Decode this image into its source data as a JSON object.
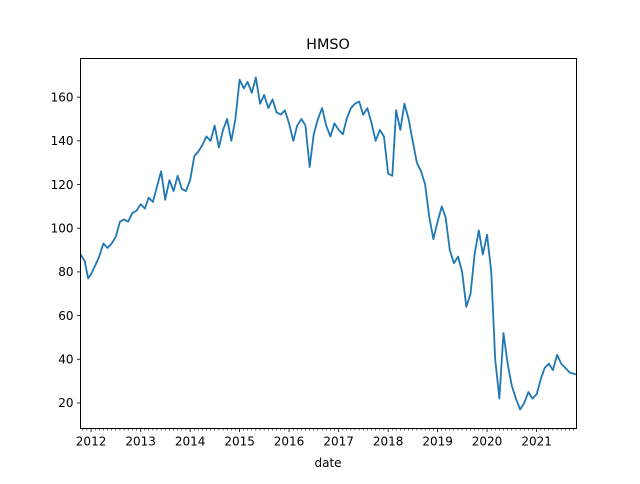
{
  "chart_data": {
    "type": "line",
    "title": "HMSO",
    "xlabel": "date",
    "ylabel": "",
    "xlim": [
      "2011-10-15",
      "2021-10-22"
    ],
    "ylim": [
      8.3,
      177.7
    ],
    "grid": false,
    "x_ticks": [
      {
        "label": "2012",
        "date": "2012-01-01"
      },
      {
        "label": "2013",
        "date": "2013-01-01"
      },
      {
        "label": "2014",
        "date": "2014-01-01"
      },
      {
        "label": "2015",
        "date": "2015-01-01"
      },
      {
        "label": "2016",
        "date": "2016-01-01"
      },
      {
        "label": "2017",
        "date": "2017-01-01"
      },
      {
        "label": "2018",
        "date": "2018-01-01"
      },
      {
        "label": "2019",
        "date": "2019-01-01"
      },
      {
        "label": "2020",
        "date": "2020-01-01"
      },
      {
        "label": "2021",
        "date": "2021-01-01"
      }
    ],
    "y_ticks": [
      20,
      40,
      60,
      80,
      100,
      120,
      140,
      160
    ],
    "series": [
      {
        "color": "#1f77b4",
        "points": [
          [
            "2011-10-15",
            88
          ],
          [
            "2011-11-15",
            85
          ],
          [
            "2011-12-10",
            77
          ],
          [
            "2012-01-01",
            79
          ],
          [
            "2012-02-01",
            83
          ],
          [
            "2012-03-01",
            87
          ],
          [
            "2012-04-01",
            93
          ],
          [
            "2012-05-01",
            91
          ],
          [
            "2012-06-01",
            93
          ],
          [
            "2012-07-01",
            96
          ],
          [
            "2012-08-01",
            103
          ],
          [
            "2012-09-01",
            104
          ],
          [
            "2012-10-01",
            103
          ],
          [
            "2012-11-01",
            107
          ],
          [
            "2012-12-01",
            108
          ],
          [
            "2013-01-01",
            111
          ],
          [
            "2013-02-01",
            109
          ],
          [
            "2013-03-01",
            114
          ],
          [
            "2013-04-01",
            112
          ],
          [
            "2013-05-01",
            119
          ],
          [
            "2013-06-01",
            126
          ],
          [
            "2013-07-01",
            113
          ],
          [
            "2013-08-01",
            122
          ],
          [
            "2013-09-01",
            117
          ],
          [
            "2013-10-01",
            124
          ],
          [
            "2013-11-01",
            118
          ],
          [
            "2013-12-01",
            117
          ],
          [
            "2014-01-01",
            122
          ],
          [
            "2014-02-01",
            133
          ],
          [
            "2014-03-01",
            135
          ],
          [
            "2014-04-01",
            138
          ],
          [
            "2014-05-01",
            142
          ],
          [
            "2014-06-01",
            140
          ],
          [
            "2014-07-01",
            147
          ],
          [
            "2014-08-01",
            137
          ],
          [
            "2014-09-01",
            145
          ],
          [
            "2014-10-01",
            150
          ],
          [
            "2014-11-01",
            140
          ],
          [
            "2014-12-01",
            150
          ],
          [
            "2015-01-01",
            168
          ],
          [
            "2015-02-01",
            164
          ],
          [
            "2015-03-01",
            167
          ],
          [
            "2015-04-01",
            162
          ],
          [
            "2015-05-01",
            169
          ],
          [
            "2015-06-01",
            157
          ],
          [
            "2015-07-01",
            161
          ],
          [
            "2015-08-01",
            155
          ],
          [
            "2015-09-01",
            159
          ],
          [
            "2015-10-01",
            153
          ],
          [
            "2015-11-01",
            152
          ],
          [
            "2015-12-01",
            154
          ],
          [
            "2016-01-01",
            148
          ],
          [
            "2016-02-01",
            140
          ],
          [
            "2016-03-01",
            147
          ],
          [
            "2016-04-01",
            150
          ],
          [
            "2016-05-01",
            147
          ],
          [
            "2016-06-01",
            128
          ],
          [
            "2016-07-01",
            143
          ],
          [
            "2016-08-01",
            150
          ],
          [
            "2016-09-01",
            155
          ],
          [
            "2016-10-01",
            147
          ],
          [
            "2016-11-01",
            142
          ],
          [
            "2016-12-01",
            148
          ],
          [
            "2017-01-01",
            145
          ],
          [
            "2017-02-01",
            143
          ],
          [
            "2017-03-01",
            150
          ],
          [
            "2017-04-01",
            155
          ],
          [
            "2017-05-01",
            157
          ],
          [
            "2017-06-01",
            158
          ],
          [
            "2017-07-01",
            152
          ],
          [
            "2017-08-01",
            155
          ],
          [
            "2017-09-01",
            148
          ],
          [
            "2017-10-01",
            140
          ],
          [
            "2017-11-01",
            145
          ],
          [
            "2017-12-01",
            142
          ],
          [
            "2018-01-01",
            125
          ],
          [
            "2018-02-01",
            124
          ],
          [
            "2018-03-01",
            154
          ],
          [
            "2018-04-01",
            145
          ],
          [
            "2018-05-01",
            157
          ],
          [
            "2018-06-01",
            150
          ],
          [
            "2018-07-01",
            140
          ],
          [
            "2018-08-01",
            130
          ],
          [
            "2018-09-01",
            126
          ],
          [
            "2018-10-01",
            120
          ],
          [
            "2018-11-01",
            105
          ],
          [
            "2018-12-01",
            95
          ],
          [
            "2019-01-01",
            103
          ],
          [
            "2019-02-01",
            110
          ],
          [
            "2019-03-01",
            105
          ],
          [
            "2019-04-01",
            90
          ],
          [
            "2019-05-01",
            84
          ],
          [
            "2019-06-01",
            87
          ],
          [
            "2019-07-01",
            80
          ],
          [
            "2019-08-01",
            64
          ],
          [
            "2019-09-01",
            70
          ],
          [
            "2019-10-01",
            88
          ],
          [
            "2019-11-01",
            99
          ],
          [
            "2019-12-01",
            88
          ],
          [
            "2020-01-01",
            97
          ],
          [
            "2020-02-01",
            80
          ],
          [
            "2020-03-01",
            40
          ],
          [
            "2020-04-01",
            22
          ],
          [
            "2020-05-01",
            52
          ],
          [
            "2020-06-01",
            38
          ],
          [
            "2020-07-01",
            28
          ],
          [
            "2020-08-01",
            22
          ],
          [
            "2020-09-01",
            17
          ],
          [
            "2020-10-01",
            20
          ],
          [
            "2020-11-01",
            25
          ],
          [
            "2020-12-01",
            22
          ],
          [
            "2021-01-01",
            24
          ],
          [
            "2021-02-01",
            31
          ],
          [
            "2021-03-01",
            36
          ],
          [
            "2021-04-01",
            38
          ],
          [
            "2021-05-01",
            35
          ],
          [
            "2021-06-01",
            42
          ],
          [
            "2021-07-01",
            38
          ],
          [
            "2021-08-01",
            36
          ],
          [
            "2021-09-01",
            34
          ],
          [
            "2021-10-22",
            33
          ]
        ]
      }
    ]
  }
}
